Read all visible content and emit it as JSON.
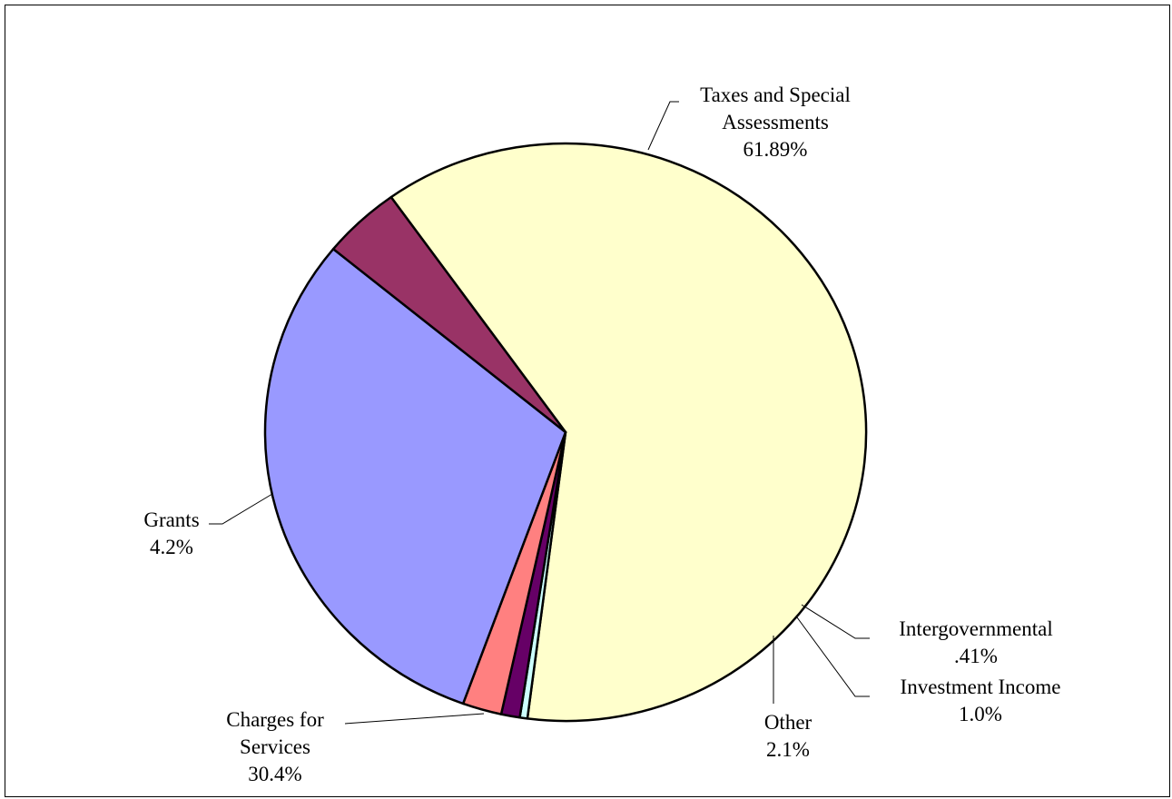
{
  "chart_data": {
    "type": "pie",
    "slices": [
      {
        "name": "Taxes and Special Assessments",
        "name_lines": [
          "Taxes and Special",
          "Assessments"
        ],
        "value": 61.89,
        "value_label": "61.89%",
        "color": "#FFFFCC"
      },
      {
        "name": "Intergovernmental",
        "name_lines": [
          "Intergovernmental"
        ],
        "value": 0.41,
        "value_label": ".41%",
        "color": "#CCFFFF"
      },
      {
        "name": "Investment Income",
        "name_lines": [
          "Investment Income"
        ],
        "value": 1.0,
        "value_label": "1.0%",
        "color": "#660066"
      },
      {
        "name": "Other",
        "name_lines": [
          "Other"
        ],
        "value": 2.1,
        "value_label": "2.1%",
        "color": "#FF8080"
      },
      {
        "name": "Charges for Services",
        "name_lines": [
          "Charges for",
          "Services"
        ],
        "value": 30.4,
        "value_label": "30.4%",
        "color": "#9999FF"
      },
      {
        "name": "Grants",
        "name_lines": [
          "Grants"
        ],
        "value": 4.2,
        "value_label": "4.2%",
        "color": "#993366"
      }
    ]
  }
}
